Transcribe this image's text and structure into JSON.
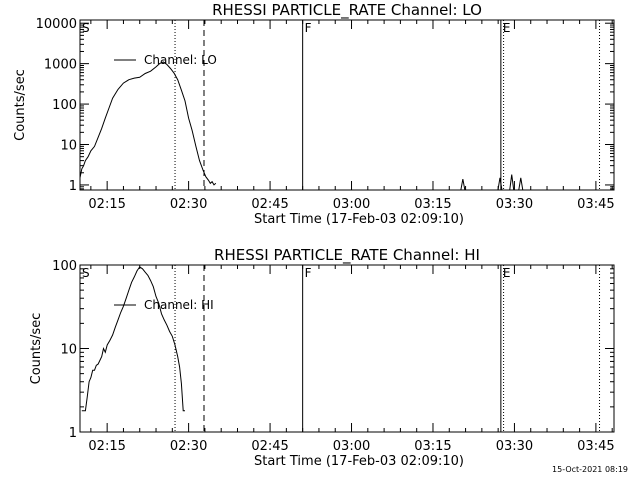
{
  "footer": {
    "timestamp": "15-Oct-2021 08:19"
  },
  "chart_data": [
    {
      "type": "line",
      "title": "RHESSI PARTICLE_RATE Channel: LO",
      "xlabel": "Start Time (17-Feb-03 02:09:10)",
      "ylabel": "Counts/sec",
      "yscale": "log",
      "xlim": [
        "02:10:00",
        "03:48:20"
      ],
      "ylim": [
        0.75,
        12000
      ],
      "x_ticks": [
        "02:15",
        "02:30",
        "02:45",
        "03:00",
        "03:15",
        "03:30",
        "03:45"
      ],
      "y_ticks": [
        {
          "value": 1,
          "label": "1"
        },
        {
          "value": 10,
          "label": "10"
        },
        {
          "value": 100,
          "label": "100"
        },
        {
          "value": 1000,
          "label": "1000"
        },
        {
          "value": 10000,
          "label": "10000"
        }
      ],
      "legend": {
        "label": "Channel: LO",
        "position": "top-left"
      },
      "markers": [
        {
          "label": "S",
          "time": "02:10:00",
          "style": "dotted"
        },
        {
          "label": "",
          "time": "02:27:30",
          "style": "dotted"
        },
        {
          "label": "",
          "time": "02:32:50",
          "style": "dashed"
        },
        {
          "label": "F",
          "time": "02:51:00",
          "style": "solid"
        },
        {
          "label": "E",
          "time": "03:27:30",
          "style": "solid"
        },
        {
          "label": "",
          "time": "03:28:00",
          "style": "dotted"
        },
        {
          "label": "",
          "time": "03:45:40",
          "style": "dotted"
        }
      ],
      "series": [
        {
          "x": [
            "02:10:00",
            "02:10:20",
            "02:10:40",
            "02:11:00",
            "02:11:30",
            "02:12:00",
            "02:12:40",
            "02:13:20",
            "02:14:00",
            "02:14:40",
            "02:15:20",
            "02:16:00",
            "02:17:00",
            "02:18:00",
            "02:19:00",
            "02:20:00",
            "02:21:00",
            "02:22:00",
            "02:23:00",
            "02:24:00",
            "02:24:40",
            "02:25:20",
            "02:26:00",
            "02:26:40",
            "02:27:20",
            "02:28:00",
            "02:28:40",
            "02:29:20",
            "02:30:00",
            "02:30:40",
            "02:31:20",
            "02:32:00",
            "02:32:40",
            "02:33:10",
            "02:33:40",
            "02:34:00",
            "02:34:20",
            "02:34:40",
            "02:35:00"
          ],
          "y": [
            1.5,
            2.5,
            3,
            4,
            5,
            7,
            9,
            15,
            25,
            45,
            80,
            140,
            230,
            330,
            400,
            440,
            460,
            570,
            650,
            830,
            1000,
            1100,
            950,
            760,
            580,
            400,
            220,
            120,
            45,
            22,
            9,
            4,
            2.3,
            1.6,
            1.3,
            1.1,
            1.2,
            1,
            1.1
          ]
        }
      ],
      "spikes": [
        {
          "time": "03:20:30",
          "y": 1.4
        },
        {
          "time": "03:27:20",
          "y": 1.5
        },
        {
          "time": "03:29:30",
          "y": 1.8
        },
        {
          "time": "03:31:10",
          "y": 1.5
        }
      ]
    },
    {
      "type": "line",
      "title": "RHESSI PARTICLE_RATE Channel: HI",
      "xlabel": "Start Time (17-Feb-03 02:09:10)",
      "ylabel": "Counts/sec",
      "yscale": "log",
      "xlim": [
        "02:10:00",
        "03:48:20"
      ],
      "ylim": [
        1,
        100
      ],
      "x_ticks": [
        "02:15",
        "02:30",
        "02:45",
        "03:00",
        "03:15",
        "03:30",
        "03:45"
      ],
      "y_ticks": [
        {
          "value": 1,
          "label": "1"
        },
        {
          "value": 10,
          "label": "10"
        },
        {
          "value": 100,
          "label": "100"
        }
      ],
      "legend": {
        "label": "Channel: HI",
        "position": "top-left"
      },
      "markers": [
        {
          "label": "S",
          "time": "02:10:00",
          "style": "dotted"
        },
        {
          "label": "",
          "time": "02:27:30",
          "style": "dotted"
        },
        {
          "label": "",
          "time": "02:32:50",
          "style": "dashed"
        },
        {
          "label": "F",
          "time": "02:51:00",
          "style": "solid"
        },
        {
          "label": "E",
          "time": "03:27:30",
          "style": "solid"
        },
        {
          "label": "",
          "time": "03:28:00",
          "style": "dotted"
        },
        {
          "label": "",
          "time": "03:45:40",
          "style": "dotted"
        }
      ],
      "series": [
        {
          "x": [
            "02:10:20",
            "02:10:40",
            "02:11:00",
            "02:11:20",
            "02:11:40",
            "02:12:00",
            "02:12:20",
            "02:12:40",
            "02:13:00",
            "02:13:20",
            "02:13:40",
            "02:14:00",
            "02:14:20",
            "02:14:40",
            "02:15:00",
            "02:15:30",
            "02:16:00",
            "02:16:30",
            "02:17:00",
            "02:17:30",
            "02:18:00",
            "02:18:30",
            "02:19:00",
            "02:19:30",
            "02:20:00",
            "02:20:30",
            "02:21:00",
            "02:21:30",
            "02:22:00",
            "02:22:30",
            "02:23:00",
            "02:23:30",
            "02:24:00",
            "02:24:30",
            "02:25:00",
            "02:25:30",
            "02:26:00",
            "02:26:30",
            "02:27:00",
            "02:27:30",
            "02:28:00",
            "02:28:20",
            "02:28:40",
            "02:29:00",
            "02:29:20"
          ],
          "y": [
            1.8,
            1.8,
            1.8,
            2.6,
            4,
            4.5,
            5.5,
            5.5,
            6.3,
            6.5,
            7.2,
            8,
            10,
            9,
            11,
            12.5,
            14.5,
            18,
            22,
            27,
            32,
            40,
            50,
            62,
            72,
            85,
            95,
            90,
            82,
            75,
            65,
            55,
            42,
            35,
            26,
            22,
            19,
            16,
            14,
            11,
            8,
            6,
            3.8,
            1.8,
            1.8
          ]
        }
      ],
      "spikes": []
    }
  ]
}
